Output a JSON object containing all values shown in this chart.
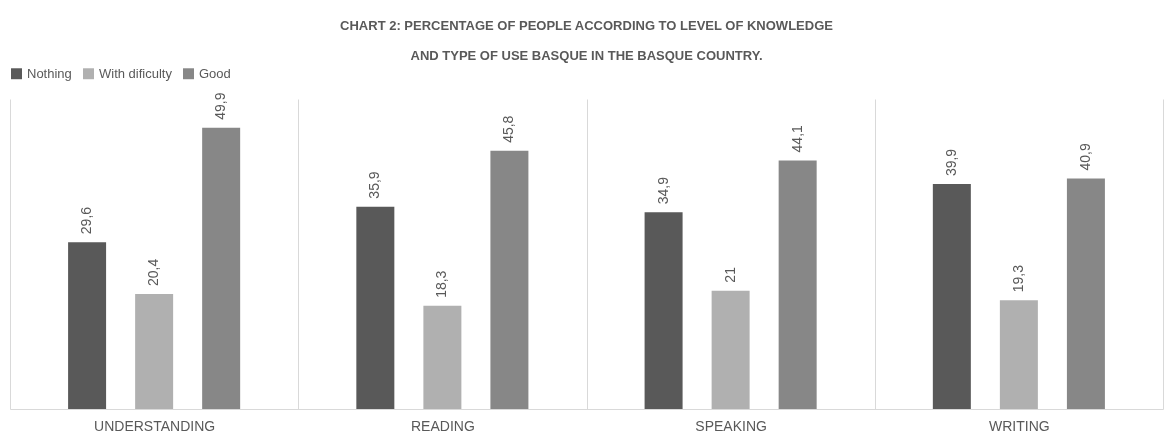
{
  "chart_data": {
    "type": "bar",
    "title": "CHART 2: PERCENTAGE OF PEOPLE ACCORDING TO LEVEL OF KNOWLEDGE AND TYPE OF USE BASQUE IN THE BASQUE COUNTRY.",
    "categories": [
      "UNDERSTANDING",
      "READING",
      "SPEAKING",
      "WRITING"
    ],
    "series": [
      {
        "name": "Nothing",
        "color": "#595959",
        "values": [
          29.6,
          35.9,
          34.9,
          39.9
        ],
        "value_labels": [
          "29,6",
          "35,9",
          "34,9",
          "39,9"
        ]
      },
      {
        "name": "With dificulty",
        "color": "#b0b0b0",
        "values": [
          20.4,
          18.3,
          21,
          19.3
        ],
        "value_labels": [
          "20,4",
          "18,3",
          "21",
          "19,3"
        ]
      },
      {
        "name": "Good",
        "color": "#878787",
        "values": [
          49.9,
          45.8,
          44.1,
          40.9
        ],
        "value_labels": [
          "49,9",
          "45,8",
          "44,1",
          "40,9"
        ]
      }
    ],
    "ylim": [
      0,
      55
    ],
    "tick_labels": "x",
    "grid": "x",
    "legend": "top"
  }
}
